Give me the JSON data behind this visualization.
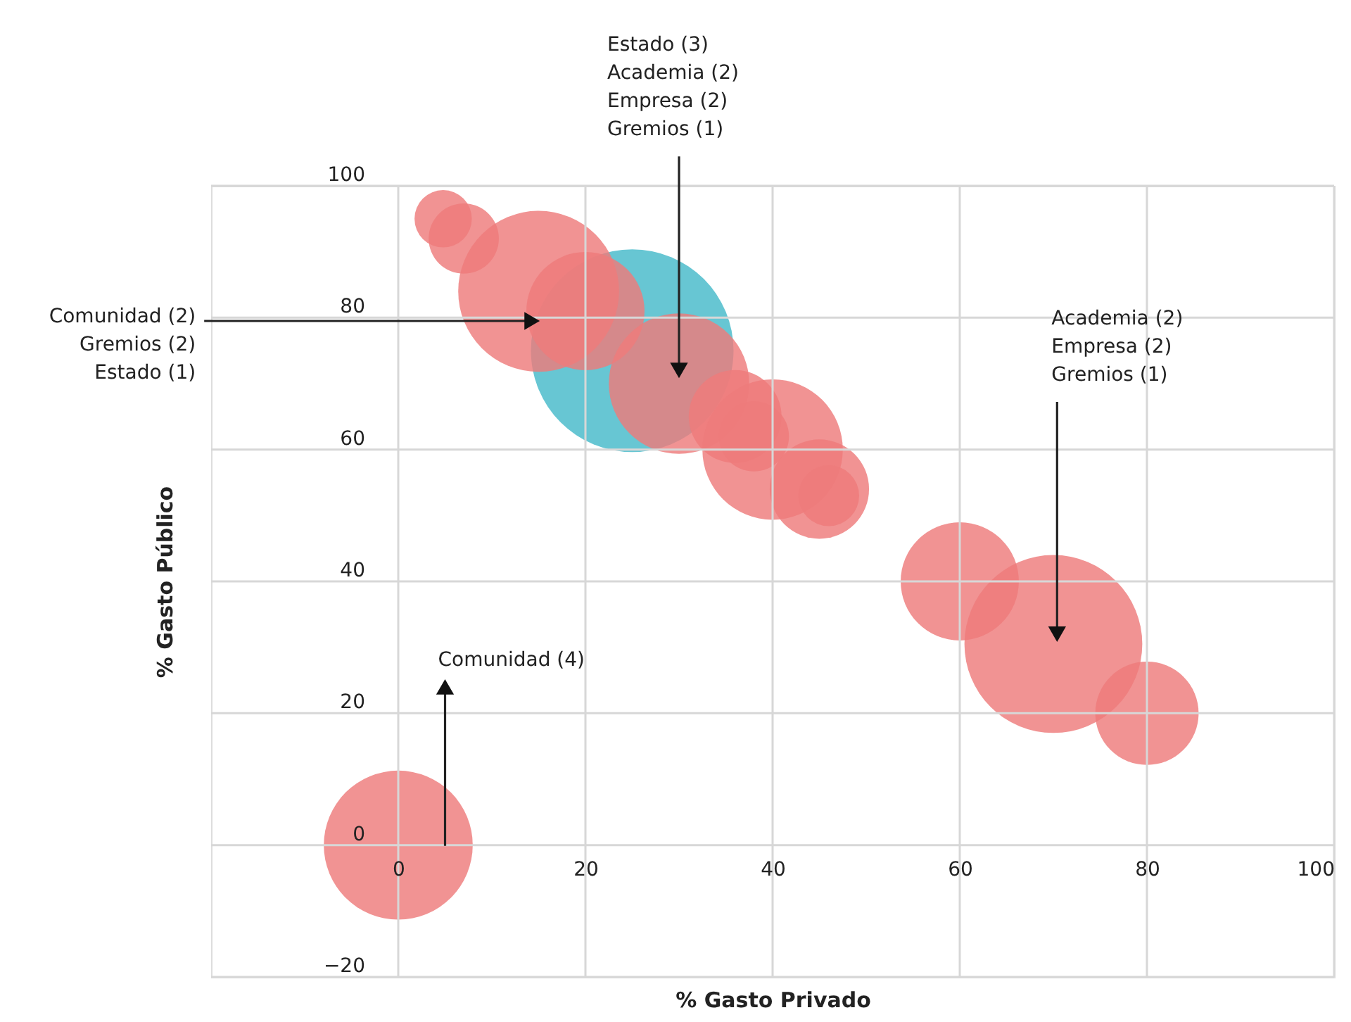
{
  "chart_data": {
    "type": "bubble",
    "xlabel": "% Gasto Privado",
    "ylabel": "% Gasto Público",
    "xlim": [
      -20,
      100
    ],
    "ylim": [
      -20,
      100
    ],
    "xticks": [
      0,
      20,
      40,
      60,
      80,
      100
    ],
    "yticks": [
      -20,
      0,
      20,
      40,
      60,
      80,
      100
    ],
    "grid": true,
    "legend": false,
    "series": [
      {
        "color": "#45b9c9",
        "x": [
          25
        ],
        "values": [
          75
        ],
        "sizes": [
          1
        ]
      },
      {
        "color": "#ee7b7b",
        "x": [
          0,
          4.8,
          7,
          15,
          20,
          30,
          36,
          38,
          40,
          45,
          46,
          60,
          70,
          80
        ],
        "values": [
          0,
          95,
          92,
          84,
          81,
          70,
          65,
          62,
          60,
          54,
          53,
          40,
          30.5,
          20
        ],
        "sizes": [
          0.54,
          0.08,
          0.12,
          0.63,
          0.34,
          0.48,
          0.21,
          0.12,
          0.48,
          0.24,
          0.09,
          0.34,
          0.77,
          0.26
        ]
      }
    ],
    "annotations": [
      {
        "text": "Estado (3)\nAcademia (2)\nEmpresa (2)\nGremios (1)",
        "x": 30,
        "y": 72
      },
      {
        "text": "Comunidad (2)\nGremios (2)\nEstado (1)",
        "x": 14.3,
        "y": 79.5
      },
      {
        "text": "Academia (2)\nEmpresa (2)\nGremios (1)",
        "x": 70.4,
        "y": 32
      },
      {
        "text": "Comunidad (4)",
        "x": 5,
        "y": 24
      }
    ]
  }
}
